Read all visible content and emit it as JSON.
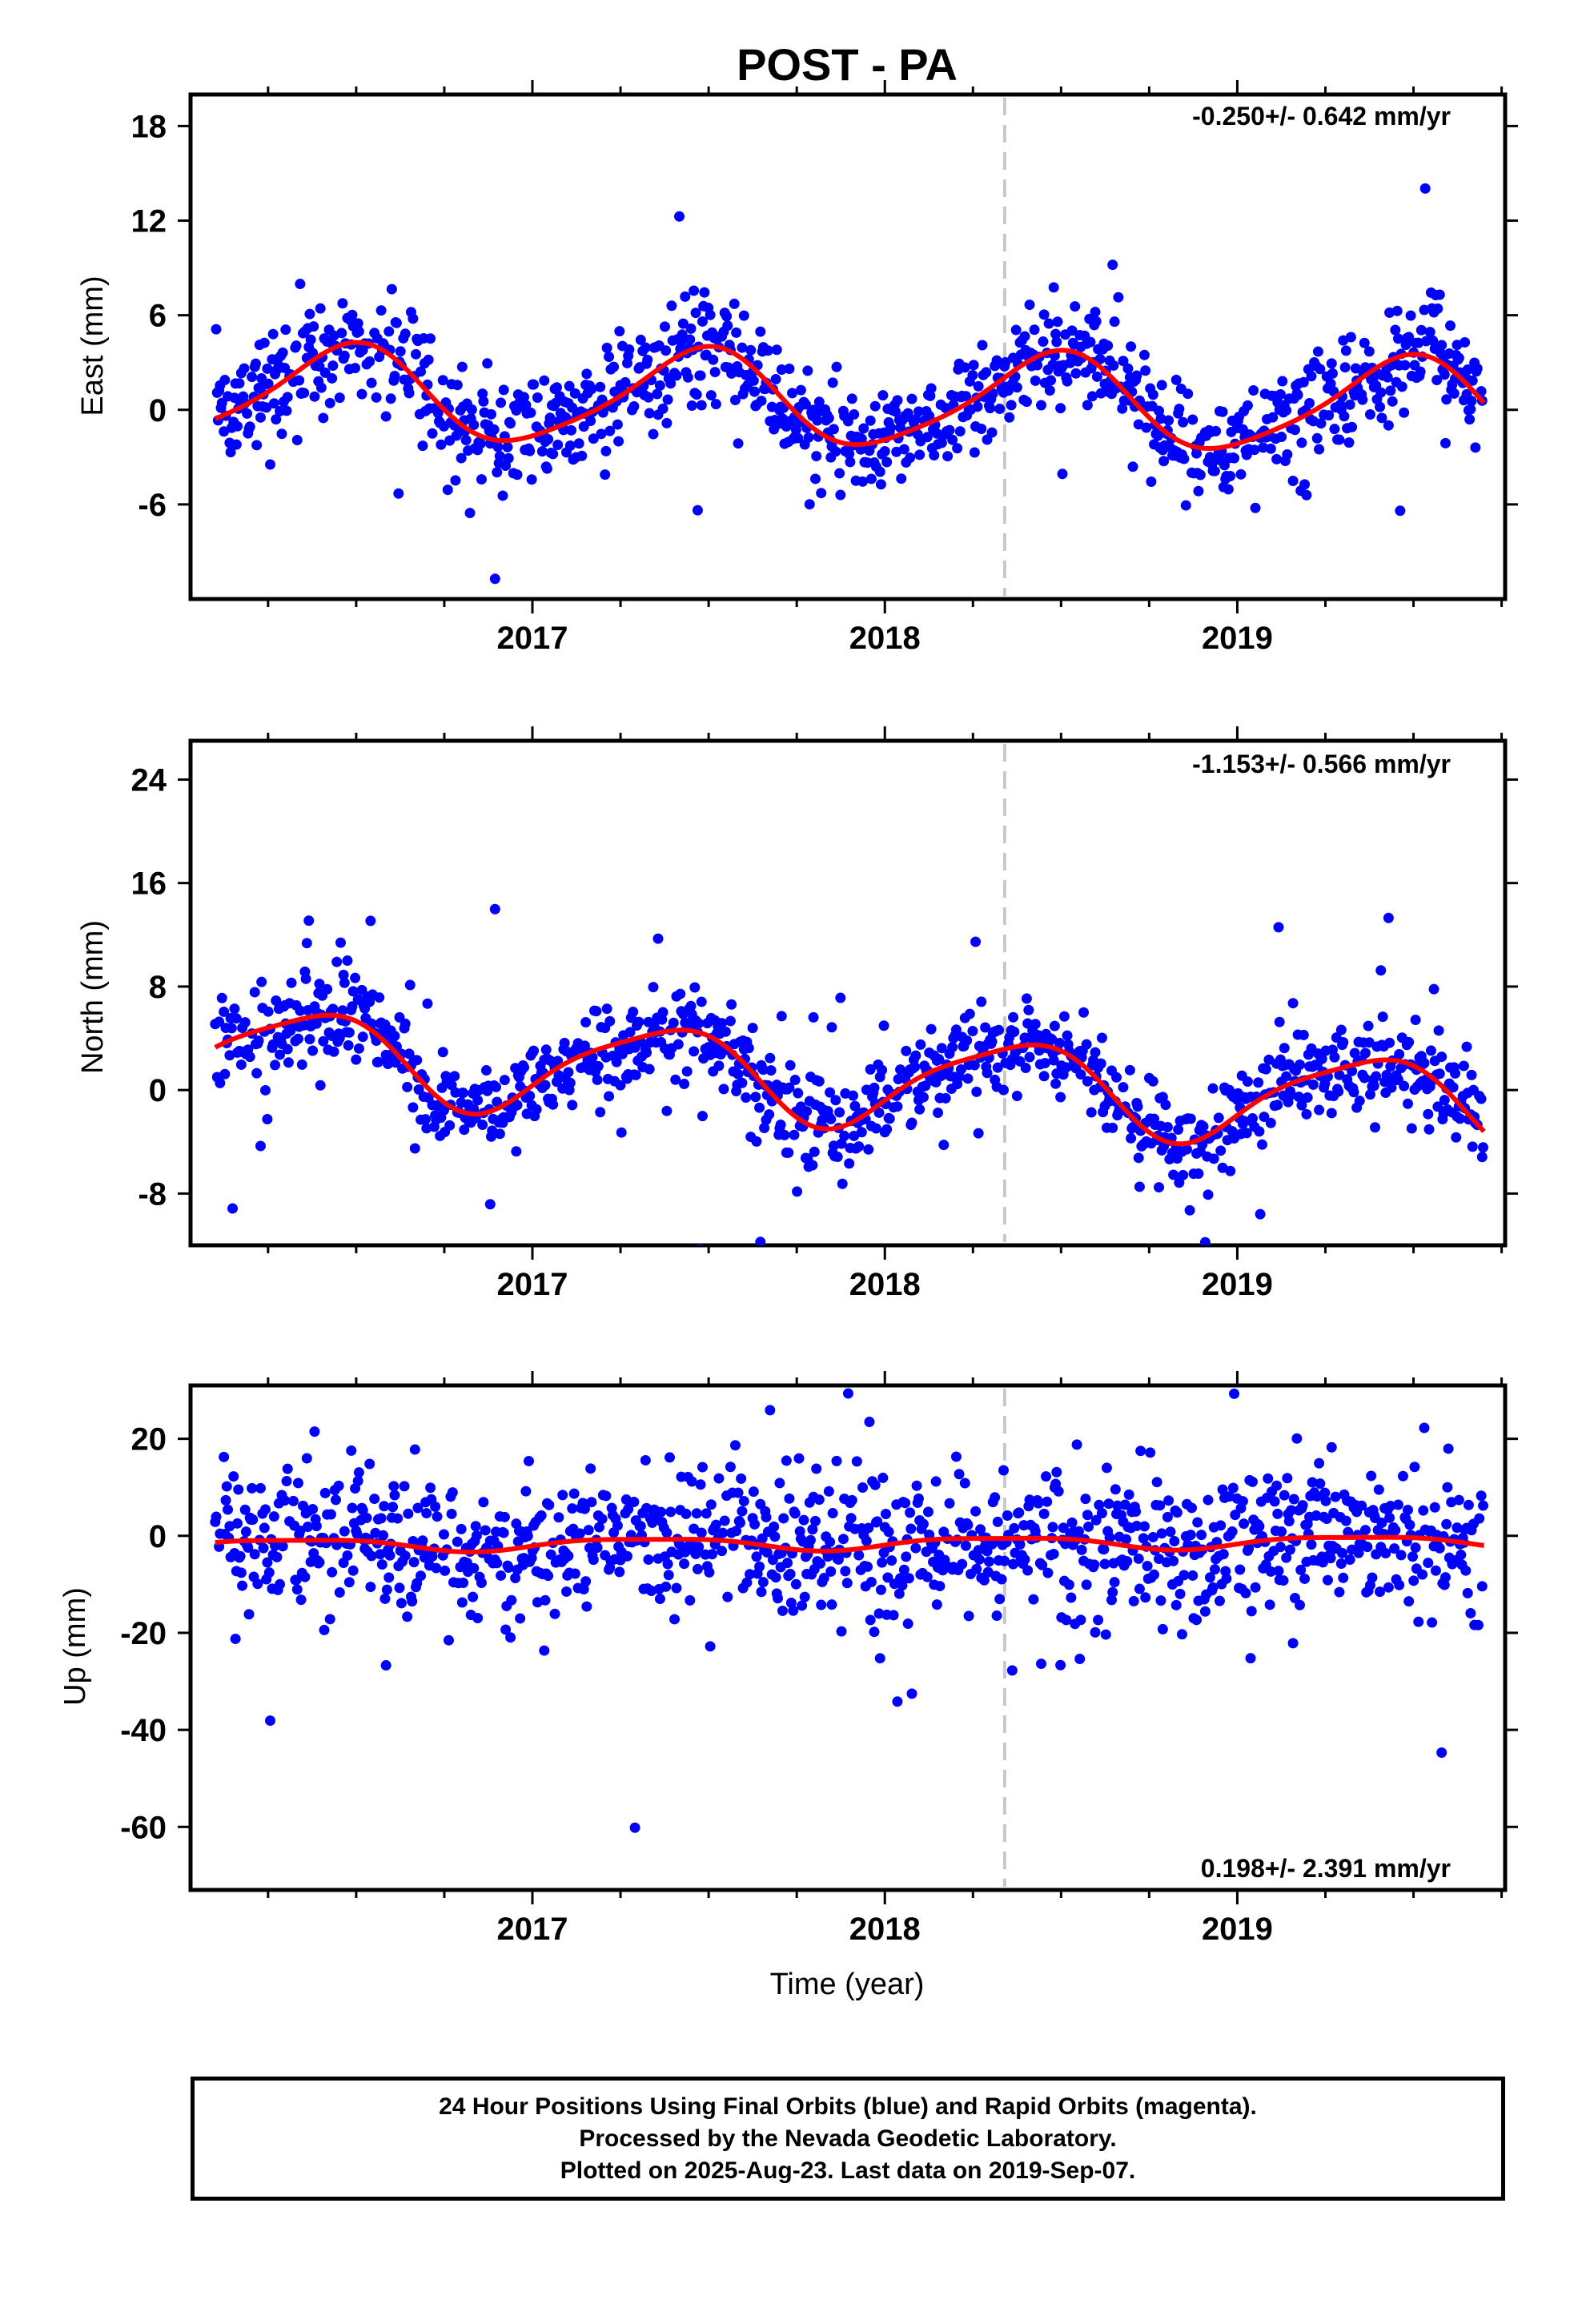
{
  "title": "POST - PA",
  "xlabel": "Time (year)",
  "colors": {
    "final_points": "#0000ff",
    "fit_line": "#ff0000",
    "equipment_change_line": "#c8c8c8",
    "frame": "#000000"
  },
  "footer": {
    "line1": "24 Hour Positions Using Final Orbits (blue) and Rapid Orbits (magenta).",
    "line2": "Processed by the Nevada Geodetic Laboratory.",
    "line3": "Plotted on 2025-Aug-23. Last data on 2019-Sep-07."
  },
  "chart_data": [
    {
      "type": "scatter",
      "component": "east",
      "ylabel": "East (mm)",
      "rate_label": "-0.250+/- 0.642 mm/yr",
      "xlim": [
        2016.03,
        2019.76
      ],
      "ylim": [
        -12,
        20
      ],
      "yticks": [
        "18",
        "12",
        "6",
        "0",
        "-6"
      ],
      "ytick_values": [
        18,
        12,
        6,
        0,
        -6
      ],
      "xticks": [
        "2017",
        "2018",
        "2019"
      ],
      "xtick_values": [
        2017,
        2018,
        2019
      ],
      "step_epoch": 2018.34,
      "series": [
        {
          "kind": "points",
          "style": "final orbits",
          "x_range": [
            2016.1,
            2019.7
          ],
          "trend": -0.25,
          "offset": 0.6,
          "annual_cos": -2.9,
          "annual_sin": 0.5,
          "semiannual_cos": 0.4,
          "semiannual_sin": 0.3,
          "scatter_sd": 1.7,
          "outlier_fraction": 0.06,
          "outlier_sd": 4.5
        },
        {
          "kind": "fit",
          "style": "seasonal fit",
          "x_range": [
            2016.1,
            2019.7
          ]
        }
      ]
    },
    {
      "type": "scatter",
      "component": "north",
      "ylabel": "North (mm)",
      "rate_label": "-1.153+/- 0.566 mm/yr",
      "xlim": [
        2016.03,
        2019.76
      ],
      "ylim": [
        -12,
        27
      ],
      "yticks": [
        "24",
        "16",
        "8",
        "0",
        "-8"
      ],
      "ytick_values": [
        24,
        16,
        8,
        0,
        -8
      ],
      "xticks": [
        "2017",
        "2018",
        "2019"
      ],
      "xtick_values": [
        2017,
        2018,
        2019
      ],
      "step_epoch": 2018.34,
      "series": [
        {
          "kind": "points",
          "style": "final orbits",
          "x_range": [
            2016.1,
            2019.7
          ],
          "trend": -1.15,
          "offset": 0.8,
          "annual_cos": -2.2,
          "annual_sin": 2.6,
          "semiannual_cos": 0.6,
          "semiannual_sin": 0.4,
          "scatter_sd": 1.8,
          "outlier_fraction": 0.07,
          "outlier_sd": 5.5
        },
        {
          "kind": "fit",
          "style": "seasonal fit",
          "x_range": [
            2016.1,
            2019.7
          ]
        }
      ]
    },
    {
      "type": "scatter",
      "component": "up",
      "ylabel": "Up (mm)",
      "rate_label": "0.198+/- 2.391 mm/yr",
      "xlim": [
        2016.03,
        2019.76
      ],
      "ylim": [
        -73,
        31
      ],
      "yticks": [
        "20",
        "0",
        "-20",
        "-40",
        "-60"
      ],
      "ytick_values": [
        20,
        0,
        -20,
        -40,
        -60
      ],
      "xticks": [
        "2017",
        "2018",
        "2019"
      ],
      "xtick_values": [
        2017,
        2018,
        2019
      ],
      "step_epoch": 2018.34,
      "series": [
        {
          "kind": "points",
          "style": "final orbits",
          "x_range": [
            2016.1,
            2019.7
          ],
          "trend": 0.2,
          "offset": -1.5,
          "annual_cos": -0.6,
          "annual_sin": 1.1,
          "semiannual_cos": 0.2,
          "semiannual_sin": 0.3,
          "scatter_sd": 7.5,
          "outlier_fraction": 0.06,
          "outlier_sd": 18
        },
        {
          "kind": "fit",
          "style": "seasonal fit",
          "x_range": [
            2016.1,
            2019.7
          ]
        }
      ]
    }
  ]
}
